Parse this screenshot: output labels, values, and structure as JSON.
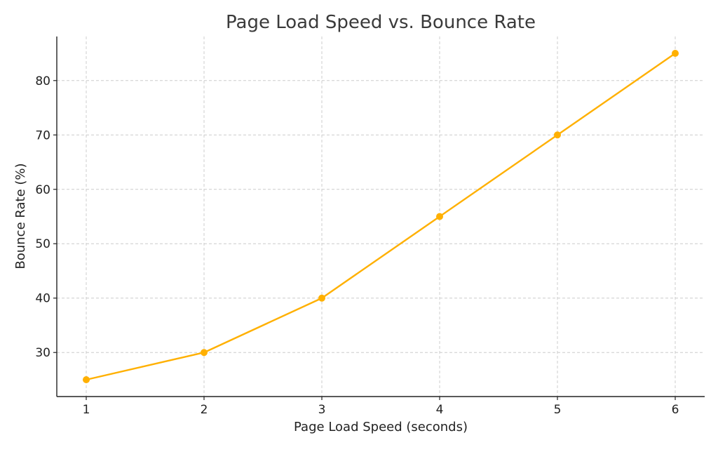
{
  "chart_data": {
    "type": "line",
    "title": "Page Load Speed vs. Bounce Rate",
    "xlabel": "Page Load Speed (seconds)",
    "ylabel": "Bounce Rate (%)",
    "x": [
      1,
      2,
      3,
      4,
      5,
      6
    ],
    "series": [
      {
        "values": [
          25,
          30,
          40,
          55,
          70,
          85
        ],
        "color": "#FFB000",
        "marker": "circle"
      }
    ],
    "xlim": [
      0.75,
      6.25
    ],
    "ylim": [
      21.9,
      88.1
    ],
    "xticks": [
      1,
      2,
      3,
      4,
      5,
      6
    ],
    "yticks": [
      30,
      40,
      50,
      60,
      70,
      80
    ],
    "grid": true,
    "legend": "none"
  }
}
